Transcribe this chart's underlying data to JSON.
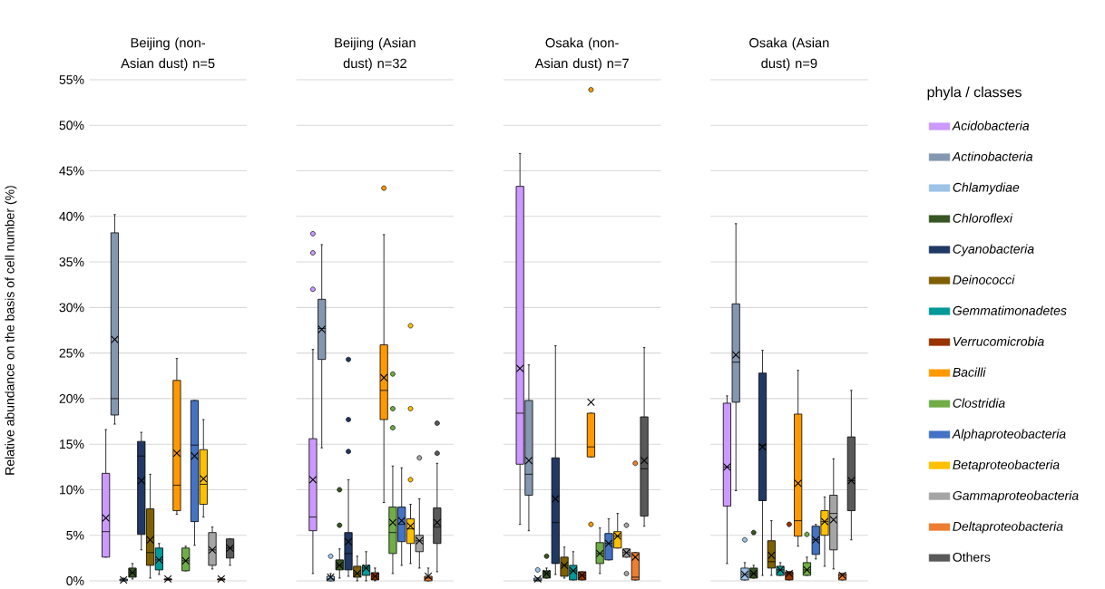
{
  "chart_data": {
    "type": "box",
    "ylabel": "Relative abundance on the basis of cell number (%)",
    "categories": [
      "Beijing (non-Asian dust) n=5",
      "Beijing (Asian dust) n=32",
      "Osaka (non-Asian dust) n=7",
      "Osaka (Asian dust) n=9"
    ],
    "ylim": [
      0,
      55
    ],
    "yticks": [
      {
        "value": 0,
        "label": "0%"
      },
      {
        "value": 5,
        "label": "5%"
      },
      {
        "value": 10,
        "label": "10%"
      },
      {
        "value": 15,
        "label": "15%"
      },
      {
        "value": 20,
        "label": "20%"
      },
      {
        "value": 25,
        "label": "25%"
      },
      {
        "value": 30,
        "label": "30%"
      },
      {
        "value": 35,
        "label": "35%"
      },
      {
        "value": 40,
        "label": "40%"
      },
      {
        "value": 45,
        "label": "45%"
      },
      {
        "value": 50,
        "label": "50%"
      },
      {
        "value": 55,
        "label": "55%"
      }
    ],
    "grid": "y",
    "legend": "right",
    "legend_title": "phyla / classes",
    "series": [
      {
        "name": "*Acidobacteria*",
        "color": "#cc99ff",
        "boxes": [
          {
            "low": 2.6,
            "q1": 2.6,
            "median": 5.4,
            "q3": 11.8,
            "high": 16.6,
            "mean": 6.9
          },
          {
            "low": 0.8,
            "q1": 5.5,
            "median": 7.0,
            "q3": 15.6,
            "high": 25.4,
            "mean": 11.1,
            "outliers": [
              38.1,
              36.0,
              32.0
            ]
          },
          {
            "low": 6.2,
            "q1": 12.8,
            "median": 18.4,
            "q3": 43.3,
            "high": 46.9,
            "mean": 23.3
          },
          {
            "low": 1.9,
            "q1": 8.2,
            "median": 12.5,
            "q3": 19.5,
            "high": 20.3,
            "mean": 12.5
          }
        ]
      },
      {
        "name": "*Actinobacteria*",
        "color": "#8497b0",
        "boxes": [
          {
            "low": 17.2,
            "q1": 18.2,
            "median": 20.0,
            "q3": 38.2,
            "high": 40.2,
            "mean": 26.5
          },
          {
            "low": 14.6,
            "q1": 24.3,
            "median": 27.7,
            "q3": 30.9,
            "high": 36.9,
            "mean": 27.6
          },
          {
            "low": 5.5,
            "q1": 9.4,
            "median": 11.7,
            "q3": 19.8,
            "high": 23.7,
            "mean": 13.2
          },
          {
            "low": 9.9,
            "q1": 19.6,
            "median": 24.0,
            "q3": 30.4,
            "high": 39.2,
            "mean": 24.8
          }
        ]
      },
      {
        "name": "*Chlamydiae*",
        "color": "#9dc3e6",
        "boxes": [
          {
            "low": 0,
            "q1": 0,
            "median": 0.1,
            "q3": 0.2,
            "high": 0.3,
            "mean": 0.1
          },
          {
            "low": 0,
            "q1": 0,
            "median": 0.2,
            "q3": 0.5,
            "high": 0.8,
            "mean": 0.4,
            "outliers": [
              2.7
            ]
          },
          {
            "low": 0,
            "q1": 0,
            "median": 0.1,
            "q3": 0.3,
            "high": 0.3,
            "mean": 0.2,
            "outliers": [
              1.2
            ]
          },
          {
            "low": 0.1,
            "q1": 0.1,
            "median": 0.7,
            "q3": 1.4,
            "high": 2.0,
            "mean": 0.7,
            "outliers": [
              4.5
            ]
          }
        ]
      },
      {
        "name": "*Chloroflexi*",
        "color": "#375623",
        "boxes": [
          {
            "low": 0.2,
            "q1": 0.4,
            "median": 0.9,
            "q3": 1.4,
            "high": 1.9,
            "mean": 0.9
          },
          {
            "low": 0.3,
            "q1": 1.2,
            "median": 1.7,
            "q3": 2.3,
            "high": 3.5,
            "mean": 1.7,
            "outliers": [
              10.0,
              6.1
            ]
          },
          {
            "low": 0.3,
            "q1": 0.3,
            "median": 0.8,
            "q3": 1.1,
            "high": 1.4,
            "mean": 0.8,
            "outliers": [
              2.7
            ]
          },
          {
            "low": 0.3,
            "q1": 0.3,
            "median": 0.8,
            "q3": 1.4,
            "high": 1.7,
            "mean": 0.8,
            "outliers": [
              5.3
            ]
          }
        ]
      },
      {
        "name": "*Cyanobacteria*",
        "color": "#203864",
        "boxes": [
          {
            "low": 3.4,
            "q1": 5.1,
            "median": 13.7,
            "q3": 15.3,
            "high": 16.3,
            "mean": 11.0
          },
          {
            "low": 0.5,
            "q1": 1.2,
            "median": 3.0,
            "q3": 5.3,
            "high": 11.1,
            "mean": 4.3,
            "outliers": [
              24.3,
              17.7,
              14.2
            ]
          },
          {
            "low": 0.7,
            "q1": 1.9,
            "median": 6.4,
            "q3": 13.5,
            "high": 25.8,
            "mean": 9.0
          },
          {
            "low": 0.6,
            "q1": 8.8,
            "median": 14.9,
            "q3": 22.8,
            "high": 25.3,
            "mean": 14.7
          }
        ]
      },
      {
        "name": "*Deinococci*",
        "color": "#7f6000",
        "boxes": [
          {
            "low": 0.3,
            "q1": 1.7,
            "median": 3.1,
            "q3": 7.9,
            "high": 11.7,
            "mean": 4.5
          },
          {
            "low": 0,
            "q1": 0.4,
            "median": 0.8,
            "q3": 1.6,
            "high": 2.7,
            "mean": 0.8
          },
          {
            "low": 0.3,
            "q1": 0.5,
            "median": 1.7,
            "q3": 2.6,
            "high": 3.7,
            "mean": 1.7
          },
          {
            "low": 0.6,
            "q1": 1.4,
            "median": 2.1,
            "q3": 4.4,
            "high": 6.6,
            "mean": 2.8
          }
        ]
      },
      {
        "name": "*Gemmatimonadetes*",
        "color": "#009999",
        "boxes": [
          {
            "low": 0.7,
            "q1": 1.2,
            "median": 2.3,
            "q3": 3.6,
            "high": 4.1,
            "mean": 2.3
          },
          {
            "low": 0,
            "q1": 0.6,
            "median": 1.4,
            "q3": 1.7,
            "high": 3.2,
            "mean": 1.4
          },
          {
            "low": 0.1,
            "q1": 0.1,
            "median": 1.1,
            "q3": 1.7,
            "high": 3.2,
            "mean": 1.1
          },
          {
            "low": 0.6,
            "q1": 0.6,
            "median": 1.2,
            "q3": 1.6,
            "high": 2.0,
            "mean": 1.2
          }
        ]
      },
      {
        "name": "*Verrucomicrobia*",
        "color": "#993300",
        "boxes": [
          {
            "low": 0.1,
            "q1": 0.1,
            "median": 0.2,
            "q3": 0.2,
            "high": 0.3,
            "mean": 0.2
          },
          {
            "low": 0,
            "q1": 0.1,
            "median": 0.5,
            "q3": 0.9,
            "high": 1.4,
            "mean": 0.5
          },
          {
            "low": 0.1,
            "q1": 0.1,
            "median": 0.6,
            "q3": 1.0,
            "high": 1.0,
            "mean": 0.6
          },
          {
            "low": 0.1,
            "q1": 0.1,
            "median": 0.8,
            "q3": 1.0,
            "high": 1.0,
            "mean": 0.8,
            "outliers": [
              6.2
            ]
          }
        ]
      },
      {
        "name": "*Bacilli*",
        "color": "#ff9900",
        "boxes": [
          {
            "low": 7.3,
            "q1": 7.7,
            "median": 10.5,
            "q3": 22.0,
            "high": 24.4,
            "mean": 14.0
          },
          {
            "low": 8.6,
            "q1": 17.7,
            "median": 20.9,
            "q3": 25.9,
            "high": 38.0,
            "mean": 22.3,
            "outliers": [
              43.1
            ]
          },
          {
            "low": 13.6,
            "q1": 13.6,
            "median": 14.7,
            "q3": 18.4,
            "high": 18.4,
            "mean": 19.6,
            "outliers": [
              53.9,
              6.2
            ]
          },
          {
            "low": 3.8,
            "q1": 4.9,
            "median": 6.6,
            "q3": 18.3,
            "high": 23.1,
            "mean": 10.7
          }
        ]
      },
      {
        "name": "*Clostridia*",
        "color": "#70ad47",
        "boxes": [
          {
            "low": 1.1,
            "q1": 1.1,
            "median": 2.2,
            "q3": 3.6,
            "high": 3.8,
            "mean": 2.2
          },
          {
            "low": 0.8,
            "q1": 3.0,
            "median": 5.3,
            "q3": 8.1,
            "high": 12.6,
            "mean": 6.4,
            "outliers": [
              22.7,
              18.9,
              16.8
            ]
          },
          {
            "low": 0.8,
            "q1": 1.9,
            "median": 3.0,
            "q3": 4.2,
            "high": 5.8,
            "mean": 3.0
          },
          {
            "low": 0.6,
            "q1": 0.6,
            "median": 1.2,
            "q3": 2.0,
            "high": 2.6,
            "mean": 1.2,
            "outliers": [
              5.1
            ]
          }
        ]
      },
      {
        "name": "*Alphaproteobacteria*",
        "color": "#4472c4",
        "boxes": [
          {
            "low": 3.9,
            "q1": 6.5,
            "median": 14.9,
            "q3": 19.8,
            "high": 19.8,
            "mean": 13.7
          },
          {
            "low": 1.7,
            "q1": 4.3,
            "median": 6.2,
            "q3": 8.1,
            "high": 12.4,
            "mean": 6.6
          },
          {
            "low": 2.3,
            "q1": 2.3,
            "median": 4.1,
            "q3": 5.2,
            "high": 6.8,
            "mean": 4.1
          },
          {
            "low": 2.4,
            "q1": 2.9,
            "median": 4.5,
            "q3": 6.0,
            "high": 6.2,
            "mean": 4.5
          }
        ]
      },
      {
        "name": "*Betaproteobacteria*",
        "color": "#ffc000",
        "boxes": [
          {
            "low": 7.0,
            "q1": 8.4,
            "median": 10.6,
            "q3": 14.4,
            "high": 17.7,
            "mean": 11.2
          },
          {
            "low": 1.9,
            "q1": 4.1,
            "median": 5.7,
            "q3": 6.8,
            "high": 8.4,
            "mean": 6.0,
            "outliers": [
              28.0,
              18.9,
              11.1
            ]
          },
          {
            "low": 3.6,
            "q1": 3.6,
            "median": 4.9,
            "q3": 5.4,
            "high": 7.4,
            "mean": 4.9
          },
          {
            "low": 1.6,
            "q1": 5.0,
            "median": 6.5,
            "q3": 7.7,
            "high": 9.2,
            "mean": 6.5
          }
        ]
      },
      {
        "name": "*Gammaproteobacteria*",
        "color": "#a5a5a5",
        "boxes": [
          {
            "low": 1.3,
            "q1": 1.7,
            "median": 3.4,
            "q3": 5.3,
            "high": 5.9,
            "mean": 3.4
          },
          {
            "low": 1.4,
            "q1": 3.2,
            "median": 4.4,
            "q3": 5.0,
            "high": 9.0,
            "mean": 4.4,
            "outliers": [
              13.5
            ]
          },
          {
            "low": 2.6,
            "q1": 2.6,
            "median": 3.1,
            "q3": 3.5,
            "high": 3.5,
            "mean": 3.1,
            "outliers": [
              6.1,
              0.8
            ]
          },
          {
            "low": 1.3,
            "q1": 3.4,
            "median": 7.4,
            "q3": 9.4,
            "high": 13.4,
            "mean": 6.7
          }
        ]
      },
      {
        "name": "*Deltaproteobacteria*",
        "color": "#ed7d31",
        "boxes": [
          {
            "low": 0.1,
            "q1": 0.1,
            "median": 0.2,
            "q3": 0.2,
            "high": 0.3,
            "mean": 0.2
          },
          {
            "low": 0,
            "q1": 0,
            "median": 0.3,
            "q3": 0.5,
            "high": 1.4,
            "mean": 0.5
          },
          {
            "low": 0.1,
            "q1": 0.1,
            "median": 0.4,
            "q3": 3.1,
            "high": 3.1,
            "mean": 2.6,
            "outliers": [
              12.9
            ]
          },
          {
            "low": 0.1,
            "q1": 0.1,
            "median": 0.6,
            "q3": 0.8,
            "high": 0.8,
            "mean": 0.6
          }
        ]
      },
      {
        "name": "Others",
        "color": "#595959",
        "boxes": [
          {
            "low": 1.7,
            "q1": 2.5,
            "median": 3.6,
            "q3": 4.6,
            "high": 4.6,
            "mean": 3.6
          },
          {
            "low": 1.0,
            "q1": 4.1,
            "median": 5.9,
            "q3": 8.0,
            "high": 12.9,
            "mean": 6.4,
            "outliers": [
              17.3,
              14.0
            ]
          },
          {
            "low": 6.0,
            "q1": 7.1,
            "median": 12.3,
            "q3": 18.0,
            "high": 25.6,
            "mean": 13.2
          },
          {
            "low": 4.5,
            "q1": 7.7,
            "median": 11.0,
            "q3": 15.8,
            "high": 20.9,
            "mean": 11.0
          }
        ]
      }
    ]
  }
}
